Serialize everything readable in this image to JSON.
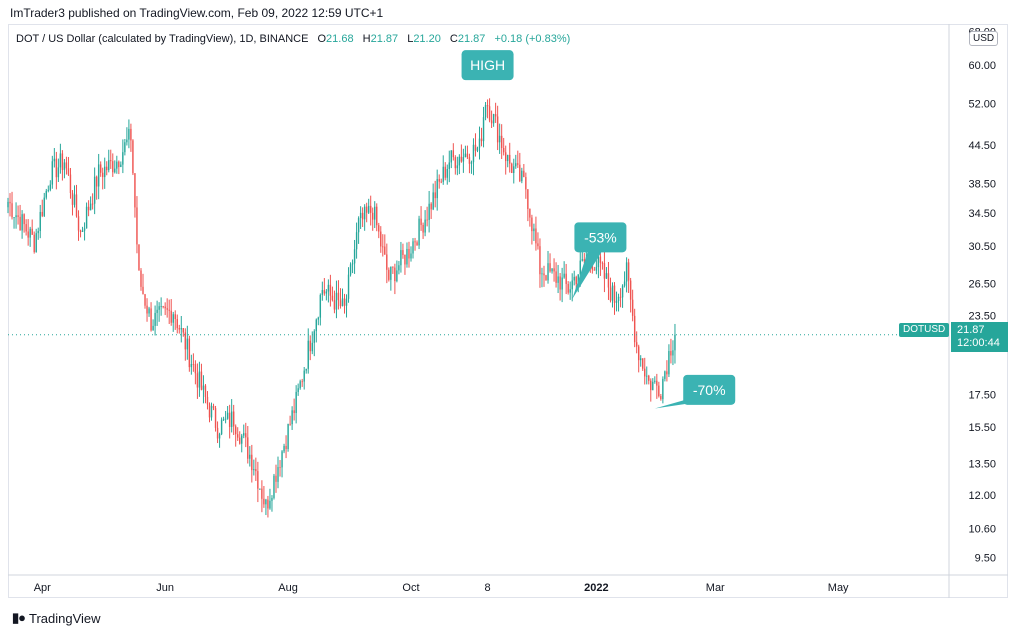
{
  "header": {
    "publish_line": "ImTrader3 published on TradingView.com, Feb 09, 2022 12:59 UTC+1"
  },
  "legend": {
    "title": "DOT / US Dollar (calculated by TradingView), 1D, BINANCE",
    "o_label": "O",
    "o_value": "21.68",
    "h_label": "H",
    "h_value": "21.87",
    "l_label": "L",
    "l_value": "21.20",
    "c_label": "C",
    "c_value": "21.87",
    "change": "+0.18 (+0.83%)"
  },
  "price_axis": {
    "currency_badge": "USD",
    "ticks": [
      "68.00",
      "60.00",
      "52.00",
      "44.50",
      "38.50",
      "34.50",
      "30.50",
      "26.50",
      "23.50",
      "17.50",
      "15.50",
      "13.50",
      "12.00",
      "10.60",
      "9.50"
    ]
  },
  "last_price": {
    "symbol": "DOTUSD",
    "price": "21.87",
    "countdown": "12:00:44"
  },
  "time_axis": {
    "ticks": [
      {
        "label": "Apr",
        "date": "2021-04-01",
        "bold": false
      },
      {
        "label": "Jun",
        "date": "2021-06-01",
        "bold": false
      },
      {
        "label": "Aug",
        "date": "2021-08-01",
        "bold": false
      },
      {
        "label": "Oct",
        "date": "2021-10-01",
        "bold": false
      },
      {
        "label": "8",
        "date": "2021-11-08",
        "bold": false
      },
      {
        "label": "2022",
        "date": "2022-01-01",
        "bold": true
      },
      {
        "label": "Mar",
        "date": "2022-03-01",
        "bold": false
      },
      {
        "label": "May",
        "date": "2022-05-01",
        "bold": false
      }
    ]
  },
  "footer": {
    "brand": "TradingView"
  },
  "colors": {
    "up": "#26a69a",
    "down": "#ef5350",
    "callout": "#3bb3b3",
    "price_line": "#26a69a"
  },
  "chart_data": {
    "type": "candlestick",
    "title": "DOT / US Dollar (calculated by TradingView), 1D, BINANCE",
    "ylim": [
      8.9,
      70
    ],
    "y_scale": "log",
    "x_start": "2021-03-15",
    "x_end": "2022-06-25",
    "price_line": 21.87,
    "anchors": [
      [
        "2021-03-15",
        36.0
      ],
      [
        "2021-03-28",
        31.0
      ],
      [
        "2021-04-05",
        40.0
      ],
      [
        "2021-04-12",
        42.0
      ],
      [
        "2021-04-20",
        32.0
      ],
      [
        "2021-04-29",
        40.0
      ],
      [
        "2021-05-08",
        42.0
      ],
      [
        "2021-05-15",
        46.0
      ],
      [
        "2021-05-19",
        27.0
      ],
      [
        "2021-05-25",
        23.0
      ],
      [
        "2021-06-05",
        24.0
      ],
      [
        "2021-06-20",
        17.5
      ],
      [
        "2021-06-27",
        15.5
      ],
      [
        "2021-07-05",
        16.0
      ],
      [
        "2021-07-15",
        13.5
      ],
      [
        "2021-07-21",
        11.5
      ],
      [
        "2021-08-05",
        17.0
      ],
      [
        "2021-08-18",
        26.0
      ],
      [
        "2021-08-29",
        24.0
      ],
      [
        "2021-09-05",
        33.0
      ],
      [
        "2021-09-12",
        35.0
      ],
      [
        "2021-09-20",
        27.0
      ],
      [
        "2021-09-30",
        30.0
      ],
      [
        "2021-10-08",
        34.0
      ],
      [
        "2021-10-20",
        42.0
      ],
      [
        "2021-11-04",
        44.0
      ],
      [
        "2021-11-07",
        53.0
      ],
      [
        "2021-11-12",
        48.0
      ],
      [
        "2021-11-18",
        42.0
      ],
      [
        "2021-11-27",
        38.0
      ],
      [
        "2021-12-04",
        28.0
      ],
      [
        "2021-12-13",
        27.0
      ],
      [
        "2021-12-18",
        26.0
      ],
      [
        "2021-12-28",
        29.5
      ],
      [
        "2022-01-03",
        28.0
      ],
      [
        "2022-01-10",
        25.0
      ],
      [
        "2022-01-16",
        27.5
      ],
      [
        "2022-01-21",
        21.0
      ],
      [
        "2022-01-27",
        18.3
      ],
      [
        "2022-02-02",
        18.0
      ],
      [
        "2022-02-07",
        21.0
      ],
      [
        "2022-02-09",
        21.87
      ]
    ],
    "annotations": [
      {
        "text": "HIGH",
        "date": "2021-11-08",
        "price": 60.0
      },
      {
        "text": "-53%",
        "date": "2022-01-03",
        "price": 31.5,
        "pointer_date": "2021-12-20",
        "pointer_price": 25.0
      },
      {
        "text": "-70%",
        "date": "2022-02-26",
        "price": 17.8,
        "pointer_date": "2022-01-30",
        "pointer_price": 16.6
      }
    ]
  }
}
